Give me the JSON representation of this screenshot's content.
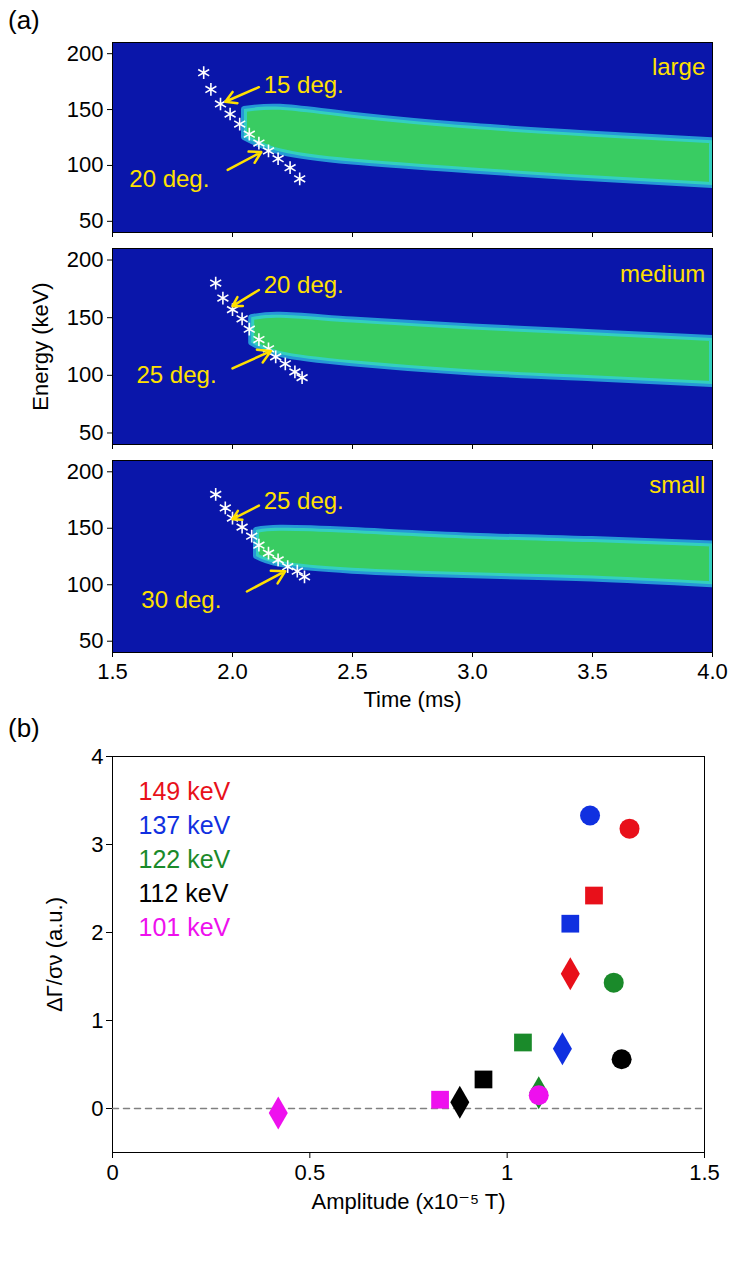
{
  "chart_data": [
    {
      "type": "band",
      "title": "(a)",
      "x": [
        1.88,
        1.91,
        1.95,
        1.99,
        2.03,
        2.07,
        2.11,
        2.15,
        2.19,
        2.24,
        2.28
      ],
      "values": [
        183,
        168,
        155,
        146,
        137,
        128,
        120,
        113,
        106,
        98,
        88
      ],
      "marker": "asterisk",
      "color": "#ffffff",
      "band": {
        "x": [
          2.05,
          2.2,
          2.5,
          3.0,
          3.5,
          4.0
        ],
        "lower": [
          125,
          112,
          103,
          95,
          88,
          82
        ],
        "upper": [
          150,
          152,
          145,
          135,
          128,
          122
        ],
        "color": "#3ee05a"
      },
      "annotations": [
        {
          "text": "15 deg.",
          "x": 2.13,
          "y": 172,
          "arrow": [
            2.11,
            170,
            1.97,
            157
          ]
        },
        {
          "text": "20 deg.",
          "x": 1.57,
          "y": 88,
          "arrow": [
            1.98,
            96,
            2.12,
            112
          ]
        },
        {
          "text": "large",
          "x": 3.97,
          "y": 188
        }
      ],
      "xlim": [
        1.5,
        4.0
      ],
      "ylim": [
        40,
        210
      ],
      "xticks": [
        1.5,
        {
          "value": 2,
          "label": "2.0"
        },
        2.5,
        {
          "value": 3,
          "label": "3.0"
        },
        3.5,
        {
          "value": 4,
          "label": "4.0"
        }
      ],
      "yticks": [
        50,
        100,
        150,
        200
      ],
      "tick_labels": "y"
    },
    {
      "type": "band",
      "ylabel": "Energy (keV)",
      "x": [
        1.93,
        1.96,
        2.0,
        2.04,
        2.07,
        2.11,
        2.15,
        2.18,
        2.22,
        2.26,
        2.29
      ],
      "values": [
        180,
        167,
        157,
        149,
        140,
        131,
        123,
        116,
        110,
        103,
        98
      ],
      "marker": "asterisk",
      "color": "#ffffff",
      "band": {
        "x": [
          2.08,
          2.2,
          2.5,
          3.0,
          3.5,
          4.0
        ],
        "lower": [
          128,
          118,
          110,
          102,
          97,
          92
        ],
        "upper": [
          150,
          152,
          148,
          142,
          137,
          132
        ],
        "color": "#3ee05a"
      },
      "annotations": [
        {
          "text": "20 deg.",
          "x": 2.13,
          "y": 178,
          "arrow": [
            2.11,
            174,
            2.0,
            160
          ]
        },
        {
          "text": "25 deg.",
          "x": 1.6,
          "y": 100,
          "arrow": [
            2.0,
            106,
            2.16,
            121
          ]
        },
        {
          "text": "medium",
          "x": 3.97,
          "y": 188
        }
      ],
      "xlim": [
        1.5,
        4.0
      ],
      "ylim": [
        40,
        210
      ],
      "xticks": [
        1.5,
        {
          "value": 2,
          "label": "2.0"
        },
        2.5,
        {
          "value": 3,
          "label": "3.0"
        },
        3.5,
        {
          "value": 4,
          "label": "4.0"
        }
      ],
      "yticks": [
        50,
        100,
        150,
        200
      ],
      "tick_labels": "y"
    },
    {
      "type": "band",
      "xlabel": "Time (ms)",
      "x": [
        1.93,
        1.97,
        2.0,
        2.04,
        2.08,
        2.11,
        2.15,
        2.19,
        2.23,
        2.27,
        2.3
      ],
      "values": [
        180,
        168,
        159,
        151,
        143,
        135,
        128,
        122,
        116,
        112,
        107
      ],
      "marker": "asterisk",
      "color": "#ffffff",
      "band": {
        "x": [
          2.1,
          2.2,
          2.5,
          3.0,
          3.5,
          4.0
        ],
        "lower": [
          125,
          118,
          112,
          108,
          105,
          100
        ],
        "upper": [
          148,
          150,
          148,
          143,
          140,
          136
        ],
        "color": "#3ee05a"
      },
      "annotations": [
        {
          "text": "25 deg.",
          "x": 2.13,
          "y": 174,
          "arrow": [
            2.11,
            170,
            2.0,
            158
          ]
        },
        {
          "text": "30 deg.",
          "x": 1.62,
          "y": 86,
          "arrow": [
            2.06,
            94,
            2.22,
            112
          ]
        },
        {
          "text": "small",
          "x": 3.97,
          "y": 188
        }
      ],
      "xlim": [
        1.5,
        4.0
      ],
      "ylim": [
        40,
        210
      ],
      "xticks": [
        1.5,
        {
          "value": 2,
          "label": "2.0"
        },
        2.5,
        {
          "value": 3,
          "label": "3.0"
        },
        3.5,
        {
          "value": 4,
          "label": "4.0"
        }
      ],
      "yticks": [
        50,
        100,
        150,
        200
      ]
    },
    {
      "type": "scatter",
      "title": "(b)",
      "xlabel": "Amplitude (x10⁻⁵ T)",
      "ylabel": "ΔΓ/σν (a.u.)",
      "xlim": [
        0,
        1.5
      ],
      "ylim": [
        -0.5,
        4
      ],
      "xticks": [
        0,
        0.5,
        1,
        1.5
      ],
      "yticks": [
        0,
        1,
        2,
        3,
        4
      ],
      "legend": "upper left",
      "series": [
        {
          "type": "line",
          "line_style": "dashed",
          "color": "#808080",
          "x": [
            0,
            1.5
          ],
          "values": [
            0,
            0
          ]
        },
        {
          "name": "149 keV",
          "color": "#e8101a",
          "marker": "circle",
          "x": [
            1.31
          ],
          "values": [
            3.18
          ]
        },
        {
          "name": "149 keV",
          "color": "#e8101a",
          "marker": "square",
          "x": [
            1.22
          ],
          "values": [
            2.42
          ]
        },
        {
          "name": "149 keV",
          "color": "#e8101a",
          "marker": "diamond",
          "x": [
            1.16
          ],
          "values": [
            1.53
          ]
        },
        {
          "name": "137 keV",
          "color": "#1030e0",
          "marker": "circle",
          "x": [
            1.21
          ],
          "values": [
            3.33
          ]
        },
        {
          "name": "137 keV",
          "color": "#1030e0",
          "marker": "square",
          "x": [
            1.16
          ],
          "values": [
            2.1
          ]
        },
        {
          "name": "137 keV",
          "color": "#1030e0",
          "marker": "diamond",
          "x": [
            1.14
          ],
          "values": [
            0.68
          ]
        },
        {
          "name": "122 keV",
          "color": "#1a8a2a",
          "marker": "circle",
          "x": [
            1.27
          ],
          "values": [
            1.43
          ]
        },
        {
          "name": "122 keV",
          "color": "#1a8a2a",
          "marker": "square",
          "x": [
            1.04
          ],
          "values": [
            0.75
          ]
        },
        {
          "name": "122 keV",
          "color": "#1a8a2a",
          "marker": "diamond",
          "x": [
            1.08
          ],
          "values": [
            0.18
          ]
        },
        {
          "name": "112 keV",
          "color": "#000000",
          "marker": "circle",
          "x": [
            1.29
          ],
          "values": [
            0.56
          ]
        },
        {
          "name": "112 keV",
          "color": "#000000",
          "marker": "square",
          "x": [
            0.94
          ],
          "values": [
            0.33
          ]
        },
        {
          "name": "112 keV",
          "color": "#000000",
          "marker": "diamond",
          "x": [
            0.88
          ],
          "values": [
            0.07
          ]
        },
        {
          "name": "101 keV",
          "color": "#ee10ee",
          "marker": "circle",
          "x": [
            1.08
          ],
          "values": [
            0.15
          ]
        },
        {
          "name": "101 keV",
          "color": "#ee10ee",
          "marker": "square",
          "x": [
            0.83
          ],
          "values": [
            0.1
          ]
        },
        {
          "name": "101 keV",
          "color": "#ee10ee",
          "marker": "diamond",
          "x": [
            0.42
          ],
          "values": [
            -0.05
          ]
        }
      ]
    }
  ]
}
